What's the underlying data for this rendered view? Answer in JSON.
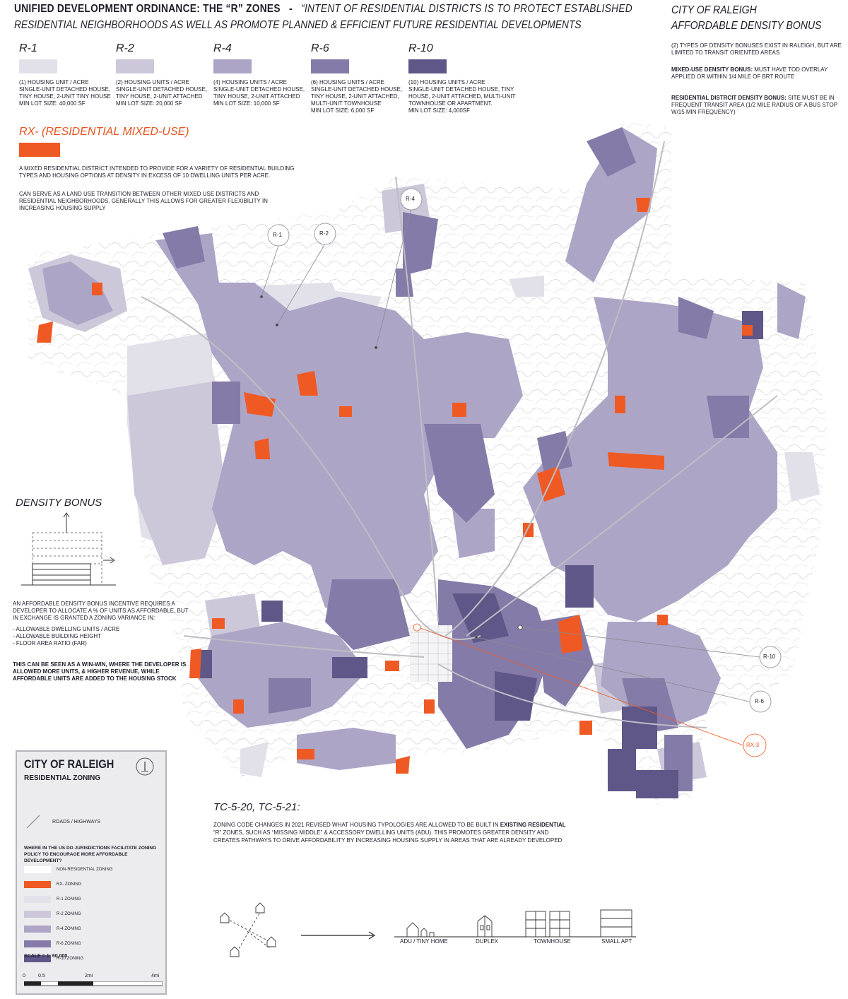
{
  "header": {
    "title_bold": "UNIFIED DEVELOPMENT ORDINANCE: THE “R” ZONES",
    "title_sep": "-",
    "title_quote": "“INTENT OF RESIDENTIAL DISTRICTS IS TO PROTECT ESTABLISHED",
    "subtitle": "RESIDENTIAL NEIGHBORHOODS AS WELL AS PROMOTE PLANNED & EFFICIENT FUTURE RESIDENTIAL DEVELOPMENTS"
  },
  "zones": [
    {
      "name": "R-1",
      "color": "#e2e1ea",
      "desc": "(1) HOUSING UNIT / ACRE\nSINGLE-UNIT DETACHED HOUSE,\nTINY HOUSE, 2-UNIT TINY HOUSE\nMIN LOT SIZE: 40,000 SF"
    },
    {
      "name": "R-2",
      "color": "#ccc8da",
      "desc": "(2) HOUSING UNITS / ACRE\nSINGLE-UNIT DETACHED HOUSE,\nTINY HOUSE, 2-UNIT ATTACHED\nMIN LOT SIZE: 20,000 SF"
    },
    {
      "name": "R-4",
      "color": "#aca5c6",
      "desc": "(4) HOUSING UNITS / ACRE\nSINGLE-UNIT DETACHED HOUSE,\nTINY HOUSE, 2-UNIT ATTACHED\nMIN LOT SIZE: 10,000 SF"
    },
    {
      "name": "R-6",
      "color": "#857ba8",
      "desc": "(6) HOUSING UNITS / ACRE\nSINGLE-UNIT DETACHED HOUSE,\nTINY HOUSE, 2-UNIT ATTACHED,\nMULTI-UNIT TOWNHOUSE\nMIN LOT SIZE: 6,000 SF"
    },
    {
      "name": "R-10",
      "color": "#5e5787",
      "desc": "(10) HOUSING UNITS / ACRE\nSINGLE-UNIT DETACHED HOUSE, TINY\nHOUSE, 2-UNIT ATTACHED, MULTI-UNIT\nTOWNHOUSE OR APARTMENT.\nMIN LOT SIZE: 4,000SF"
    }
  ],
  "rx": {
    "title": "RX- (RESIDENTIAL MIXED-USE)",
    "color": "#ef5a24",
    "para1": "A MIXED RESIDENTIAL DISTRICT INTENDED TO PROVIDE FOR A VARIETY OF RESIDENTIAL BUILDING TYPES AND HOUSING OPTIONS AT DENSITY IN EXCESS OF 10 DWELLING UNITS PER ACRE.",
    "para2": "CAN SERVE AS A LAND USE TRANSITION BETWEEN OTHER MIXED USE DISTRICTS AND RESIDENTIAL NEIGHBORHOODS. GENERALLY THIS ALLOWS FOR GREATER FLEXIBILITY IN INCREASING HOUSING SUPPLY"
  },
  "affordable": {
    "title1": "CITY OF RALEIGH",
    "title2": "AFFORDABLE DENSITY BONUS",
    "p1": "(2) TYPES OF DENSITY BONUSES EXIST IN RALEIGH, BUT ARE LIMITED TO TRANSIT ORIENTED AREAS",
    "p2_bold": "MIXED-USE DENSITY BONUS:",
    "p2": " MUST HAVE TOD OVERLAY APPLIED OR WITHIN 1/4 MILE OF BRT ROUTE",
    "p3_bold": "RESIDENTIAL DISTRCIT DENSITY BONUS:",
    "p3": " SITE MUST BE IN FREQUENT TRANSIT AREA (1/2 MILE RADIUS OF A BUS STOP W/15 MIN FREQUENCY)"
  },
  "density_bonus": {
    "title": "DENSITY BONUS",
    "intro": "AN AFFORDABLE DENSITY BONUS INCENTIVE REQUIRES A DEVELOPER TO ALLOCATE A % OF UNITS AS AFFORDABLE, BUT IN EXCHANGE IS GRANTED A ZONING VARIANCE IN:",
    "items": [
      "-   ALLOWABLE DWELLING UNITS / ACRE",
      "-   ALLOWABLE BUILDING HEIGHT",
      "-   FLOOR AREA RATIO (FAR)"
    ],
    "conclusion": "THIS CAN BE SEEN AS A WIN-WIN, WHERE THE DEVELOPER IS ALLOWED MORE UNITS, & HIGHER REVENUE, WHILE AFFORDABLE UNITS ARE ADDED TO THE HOUSING STOCK"
  },
  "legend": {
    "title": "CITY OF RALEIGH",
    "subtitle": "RESIDENTIAL ZONING",
    "roads": "ROADS / HIGHWAYS",
    "question": "WHERE IN THE US DO JURISDICTIONS FACILITATE ZONING POLICY TO ENCOURAGE MORE AFFORDABLE DEVELOPMENT?",
    "items": [
      {
        "label": "NON-RESIDENTIAL ZONING",
        "color": "#ffffff"
      },
      {
        "label": "RX- ZONING",
        "color": "#ef5a24"
      },
      {
        "label": "R-1 ZONING",
        "color": "#e2e1ea"
      },
      {
        "label": "R-2 ZONING",
        "color": "#ccc8da"
      },
      {
        "label": "R-4 ZONING",
        "color": "#aca5c6"
      },
      {
        "label": "R-6 ZONING",
        "color": "#857ba8"
      },
      {
        "label": "R-10 ZONING",
        "color": "#5e5787"
      }
    ],
    "scale": "SCALE = 1: 60,000",
    "scale_ticks": [
      "0",
      "0.5",
      "2mi",
      "4mi"
    ]
  },
  "callouts": {
    "r1": "R-1",
    "r2": "R-2",
    "r4": "R-4",
    "r10": "R-10",
    "r6": "R-6",
    "rx3": "RX-3"
  },
  "tc": {
    "title": "TC-5-20, TC-5-21:",
    "t1": "ZONING CODE CHANGES IN 2021 REVISED WHAT HOUSING TYPOLOGIES ARE ALLOWED TO BE BUILT IN ",
    "t2": "EXISTING RESIDENTIAL",
    "t3": " “R” ZONES, SUCH AS “MISSING MIDDLE” & ACCESSORY DWELLING UNITS (ADU). THIS PROMOTES GREATER DENSITY AND CREATES PATHWAYS TO DRIVE AFFORDABILITY BY INCREASING HOUSING SUPPLY IN AREAS THAT ARE ALREADY DEVELOPED",
    "typologies": [
      "ADU / TINY HOME",
      "DUPLEX",
      "TOWNHOUSE",
      "SMALL APT"
    ]
  }
}
